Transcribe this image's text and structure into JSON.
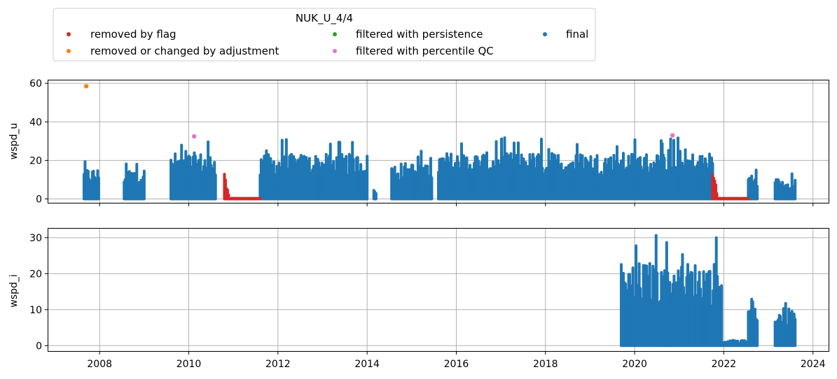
{
  "chart_data": {
    "type": "scatter",
    "legend": {
      "title": "NUK_U_4/4",
      "placement": "top-left, above plots",
      "entries": [
        {
          "label": "removed by flag",
          "color": "#d62728"
        },
        {
          "label": "filtered with persistence",
          "color": "#2ca02c"
        },
        {
          "label": "final",
          "color": "#1f77b4"
        },
        {
          "label": "removed or changed by adjustment",
          "color": "#ff7f0e"
        },
        {
          "label": "filtered with percentile QC",
          "color": "#e377c2"
        }
      ]
    },
    "xaxis": {
      "range": [
        2006.85,
        2024.35
      ],
      "ticks": [
        2008,
        2010,
        2012,
        2014,
        2016,
        2018,
        2020,
        2022,
        2024
      ],
      "tick_labels": [
        "2008",
        "2010",
        "2012",
        "2014",
        "2016",
        "2018",
        "2020",
        "2022",
        "2024"
      ],
      "grid": true
    },
    "panels": [
      {
        "ylabel": "wspd_u",
        "ylim": [
          -2,
          61.5
        ],
        "yticks": [
          0,
          20,
          40,
          60
        ],
        "ytick_labels": [
          "0",
          "20",
          "40",
          "60"
        ],
        "show_xtick_labels": false,
        "series": [
          {
            "name": "final",
            "color": "#1f77b4",
            "segments": [
              {
                "start": 2007.65,
                "end": 2007.98,
                "max": 21
              },
              {
                "start": 2008.55,
                "end": 2009.0,
                "max": 21
              },
              {
                "start": 2009.6,
                "end": 2010.6,
                "max": 32
              },
              {
                "start": 2011.6,
                "end": 2014.0,
                "max": 31
              },
              {
                "start": 2014.15,
                "end": 2014.2,
                "max": 7
              },
              {
                "start": 2014.55,
                "end": 2015.45,
                "max": 25
              },
              {
                "start": 2015.6,
                "end": 2021.75,
                "max": 32
              },
              {
                "start": 2022.55,
                "end": 2022.75,
                "max": 18
              },
              {
                "start": 2023.15,
                "end": 2023.6,
                "max": 14
              }
            ]
          },
          {
            "name": "removed by flag",
            "color": "#d62728",
            "segments": [
              {
                "start": 2010.8,
                "end": 2011.6,
                "kind": "decay",
                "max": 14
              },
              {
                "start": 2021.75,
                "end": 2022.55,
                "kind": "decay",
                "max": 18
              }
            ]
          },
          {
            "name": "removed or changed by adjustment",
            "color": "#ff7f0e",
            "points": [
              {
                "x": 2007.7,
                "y": 58.5
              }
            ]
          },
          {
            "name": "filtered with percentile QC",
            "color": "#e377c2",
            "points": [
              {
                "x": 2010.12,
                "y": 32.5
              },
              {
                "x": 2020.85,
                "y": 33
              }
            ]
          }
        ]
      },
      {
        "ylabel": "wspd_i",
        "ylim": [
          -1.5,
          32.5
        ],
        "yticks": [
          0,
          10,
          20,
          30
        ],
        "ytick_labels": [
          "0",
          "10",
          "20",
          "30"
        ],
        "show_xtick_labels": true,
        "series": [
          {
            "name": "final",
            "color": "#1f77b4",
            "segments": [
              {
                "start": 2019.7,
                "end": 2021.95,
                "max": 31
              },
              {
                "start": 2021.95,
                "end": 2022.55,
                "max": 1.5,
                "kind": "low"
              },
              {
                "start": 2022.55,
                "end": 2022.75,
                "max": 13
              },
              {
                "start": 2023.15,
                "end": 2023.6,
                "max": 14
              }
            ]
          }
        ]
      }
    ]
  }
}
